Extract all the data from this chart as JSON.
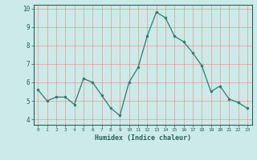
{
  "x": [
    0,
    1,
    2,
    3,
    4,
    5,
    6,
    7,
    8,
    9,
    10,
    11,
    12,
    13,
    14,
    15,
    16,
    17,
    18,
    19,
    20,
    21,
    22,
    23
  ],
  "y": [
    5.6,
    5.0,
    5.2,
    5.2,
    4.8,
    6.2,
    6.0,
    5.3,
    4.6,
    4.2,
    6.0,
    6.8,
    8.5,
    9.8,
    9.5,
    8.5,
    8.2,
    7.6,
    6.9,
    5.5,
    5.8,
    5.1,
    4.9,
    4.6
  ],
  "xlabel": "Humidex (Indice chaleur)",
  "xlim": [
    -0.5,
    23.5
  ],
  "ylim": [
    3.7,
    10.2
  ],
  "yticks": [
    4,
    5,
    6,
    7,
    8,
    9,
    10
  ],
  "xticks": [
    0,
    1,
    2,
    3,
    4,
    5,
    6,
    7,
    8,
    9,
    10,
    11,
    12,
    13,
    14,
    15,
    16,
    17,
    18,
    19,
    20,
    21,
    22,
    23
  ],
  "line_color": "#2d7d6e",
  "marker_color": "#2d7d6e",
  "bg_color": "#cceae8",
  "grid_color_major": "#f08080",
  "grid_color_minor": "#e8c8c8",
  "axis_color": "#2d5f58",
  "tick_color": "#2d5f58",
  "label_color": "#2d5f58"
}
